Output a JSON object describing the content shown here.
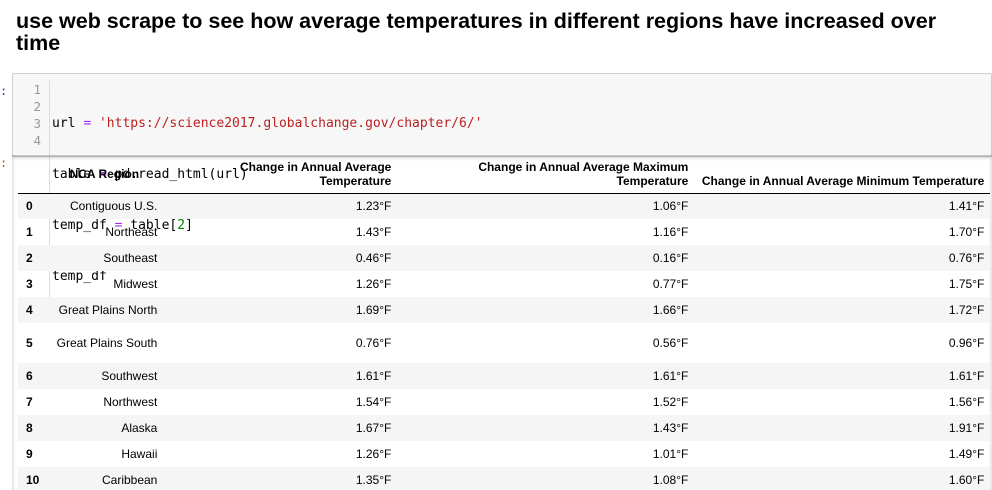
{
  "markdown": {
    "heading": "use web scrape to see how average temperatures in different regions have increased over time"
  },
  "code_cell": {
    "line_numbers": [
      "1",
      "2",
      "3",
      "4"
    ],
    "lines": [
      {
        "parts": [
          "url ",
          "=",
          " ",
          "'https://science2017.globalchange.gov/chapter/6/'"
        ]
      },
      {
        "parts": [
          "table ",
          "=",
          " pd.read_html(url)"
        ]
      },
      {
        "parts": [
          "temp_df ",
          "=",
          " table[",
          "2",
          "]"
        ]
      },
      {
        "parts": [
          "temp_df"
        ]
      }
    ],
    "in_prompt": ":",
    "out_prompt": ":"
  },
  "table": {
    "columns": [
      "",
      "NCA Region",
      "Change in Annual Average Temperature",
      "Change in Annual Average Maximum Temperature",
      "Change in Annual Average Minimum Temperature"
    ],
    "rows": [
      {
        "index": "0",
        "region": "Contiguous U.S.",
        "avg": "1.23°F",
        "max": "1.06°F",
        "min": "1.41°F"
      },
      {
        "index": "1",
        "region": "Northeast",
        "avg": "1.43°F",
        "max": "1.16°F",
        "min": "1.70°F"
      },
      {
        "index": "2",
        "region": "Southeast",
        "avg": "0.46°F",
        "max": "0.16°F",
        "min": "0.76°F"
      },
      {
        "index": "3",
        "region": "Midwest",
        "avg": "1.26°F",
        "max": "0.77°F",
        "min": "1.75°F"
      },
      {
        "index": "4",
        "region": "Great Plains North",
        "avg": "1.69°F",
        "max": "1.66°F",
        "min": "1.72°F"
      },
      {
        "index": "5",
        "region": "Great Plains South",
        "avg": "0.76°F",
        "max": "0.56°F",
        "min": "0.96°F"
      },
      {
        "index": "6",
        "region": "Southwest",
        "avg": "1.61°F",
        "max": "1.61°F",
        "min": "1.61°F"
      },
      {
        "index": "7",
        "region": "Northwest",
        "avg": "1.54°F",
        "max": "1.52°F",
        "min": "1.56°F"
      },
      {
        "index": "8",
        "region": "Alaska",
        "avg": "1.67°F",
        "max": "1.43°F",
        "min": "1.91°F"
      },
      {
        "index": "9",
        "region": "Hawaii",
        "avg": "1.26°F",
        "max": "1.01°F",
        "min": "1.49°F"
      },
      {
        "index": "10",
        "region": "Caribbean",
        "avg": "1.35°F",
        "max": "1.08°F",
        "min": "1.60°F"
      }
    ]
  },
  "colors": {
    "string_literal": "#ba2121",
    "operator": "#aa22ff",
    "number_literal": "#080",
    "in_prompt": "#303f9f",
    "out_prompt": "#d84315"
  }
}
